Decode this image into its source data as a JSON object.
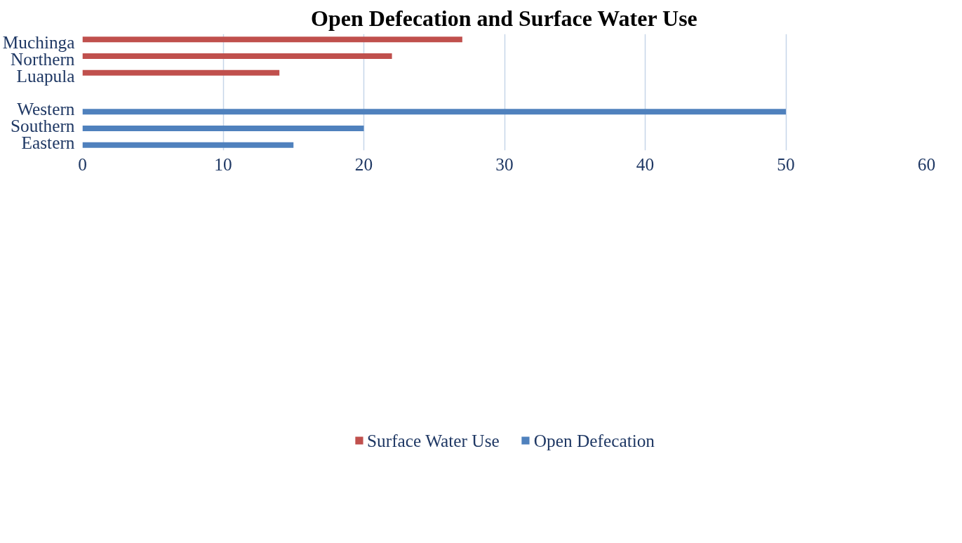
{
  "chart_data": {
    "type": "bar",
    "orientation": "horizontal",
    "title": "Open Defecation and Surface Water Use",
    "categories": [
      "Muchinga",
      "Northern",
      "Luapula",
      null,
      "Western",
      "Southern",
      "Eastern"
    ],
    "series": [
      {
        "name": "Surface Water Use",
        "color": "#c0504d",
        "values": [
          27,
          22,
          14,
          null,
          null,
          null,
          null
        ]
      },
      {
        "name": "Open Defecation",
        "color": "#4f81bd",
        "values": [
          null,
          null,
          null,
          null,
          50,
          20,
          15
        ]
      }
    ],
    "xlim": [
      0,
      60
    ],
    "xticks": [
      0,
      10,
      20,
      30,
      40,
      50,
      60
    ],
    "grid": "x",
    "legend": "bottom"
  }
}
